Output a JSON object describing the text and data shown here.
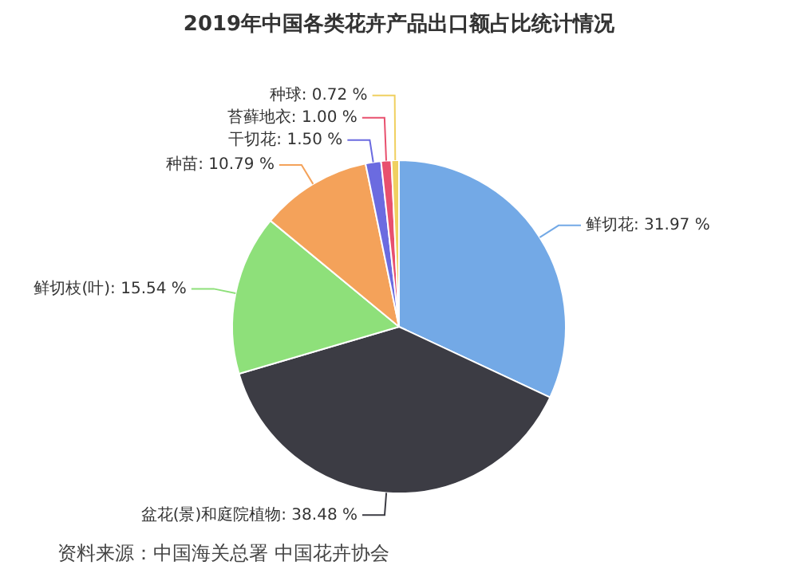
{
  "chart_data": {
    "type": "pie",
    "title": "2019年中国各类花卉产品出口额占比统计情况",
    "categories": [
      "鲜切花",
      "盆花(景)和庭院植物",
      "鲜切枝(叶)",
      "种苗",
      "干切花",
      "苔藓地衣",
      "种球"
    ],
    "values": [
      31.97,
      38.48,
      15.54,
      10.79,
      1.5,
      1.0,
      0.72
    ],
    "value_labels": [
      "31.97 %",
      "38.48 %",
      "15.54 %",
      "10.79 %",
      "1.50 %",
      "1.00 %",
      "0.72 %"
    ],
    "colors": [
      "#73a9e6",
      "#3c3c44",
      "#8ee07a",
      "#f4a25a",
      "#6b6be0",
      "#e8506e",
      "#f0d060"
    ],
    "legend": false,
    "annotations": [
      "资料来源：中国海关总署 中国花卉协会"
    ]
  }
}
